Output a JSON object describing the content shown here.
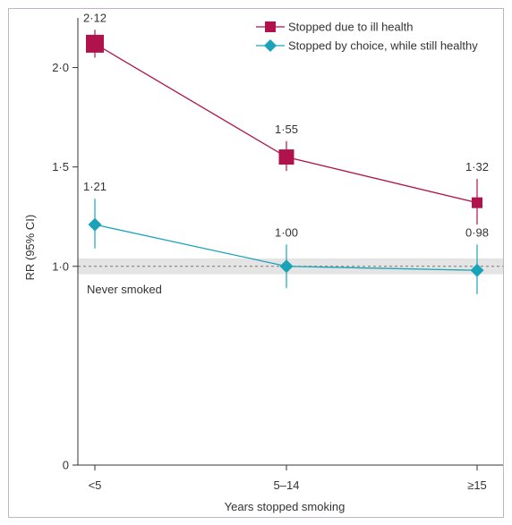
{
  "chart_data": {
    "type": "line",
    "xlabel": "Years stopped smoking",
    "ylabel": "RR (95% CI)",
    "categories": [
      "<5",
      "5–14",
      "≥15"
    ],
    "yticks": [
      "0",
      "1·0",
      "1·5",
      "2·0"
    ],
    "ytick_values": [
      0,
      1.0,
      1.5,
      2.0
    ],
    "ylim": [
      0,
      2.25
    ],
    "reference": {
      "label": "Never smoked",
      "value": 1.0,
      "band": [
        0.96,
        1.04
      ]
    },
    "legend": {
      "position": "top-right"
    },
    "series": [
      {
        "name": "Stopped due to ill health",
        "color": "#b0124b",
        "marker": "square",
        "values": [
          2.12,
          1.55,
          1.32
        ],
        "labels": [
          "2·12",
          "1·55",
          "1·32"
        ],
        "ci_low": [
          2.05,
          1.48,
          1.21
        ],
        "ci_high": [
          2.19,
          1.63,
          1.44
        ]
      },
      {
        "name": "Stopped by choice, while still healthy",
        "color": "#1aa3b8",
        "marker": "diamond",
        "values": [
          1.21,
          1.0,
          0.98
        ],
        "labels": [
          "1·21",
          "1·00",
          "0·98"
        ],
        "ci_low": [
          1.09,
          0.89,
          0.86
        ],
        "ci_high": [
          1.34,
          1.11,
          1.11
        ]
      }
    ]
  }
}
